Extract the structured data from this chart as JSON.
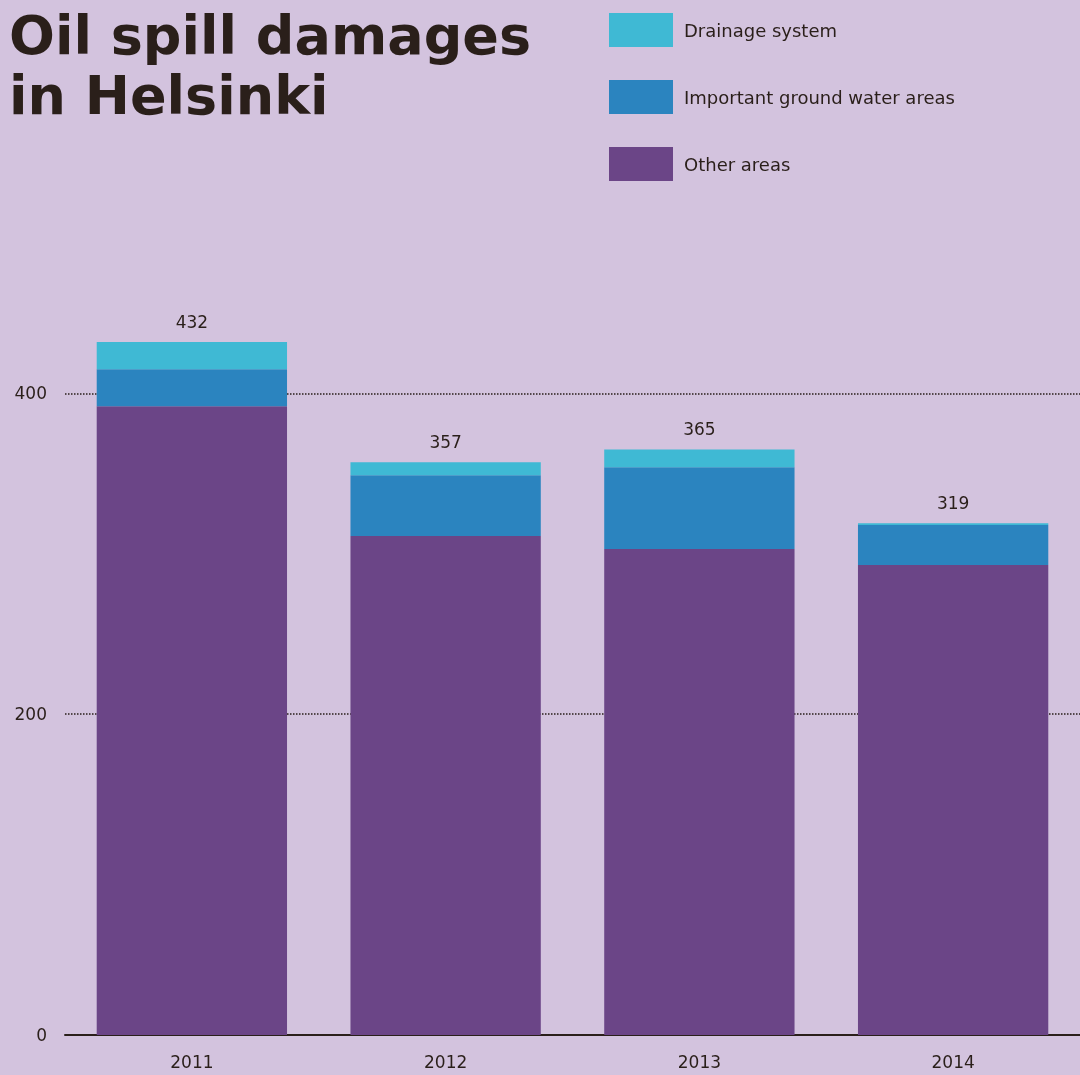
{
  "chart_data": {
    "type": "bar",
    "title": "Oil spill damages\nin Helsinki",
    "categories": [
      "2011",
      "2012",
      "2013",
      "2014"
    ],
    "stacked": true,
    "series": [
      {
        "name": "Other areas",
        "color": "#6b4587",
        "values": [
          392,
          311,
          303,
          293
        ]
      },
      {
        "name": "Important ground water areas",
        "color": "#2b84bf",
        "values": [
          23,
          38,
          51,
          25
        ]
      },
      {
        "name": "Drainage system",
        "color": "#3fb9d4",
        "values": [
          17,
          8,
          11,
          1
        ]
      }
    ],
    "totals": [
      "432",
      "357",
      "365",
      "319"
    ],
    "ylim": [
      0,
      432
    ],
    "yticks": [
      0,
      200,
      400
    ],
    "grid": "y",
    "legend": "top right"
  }
}
